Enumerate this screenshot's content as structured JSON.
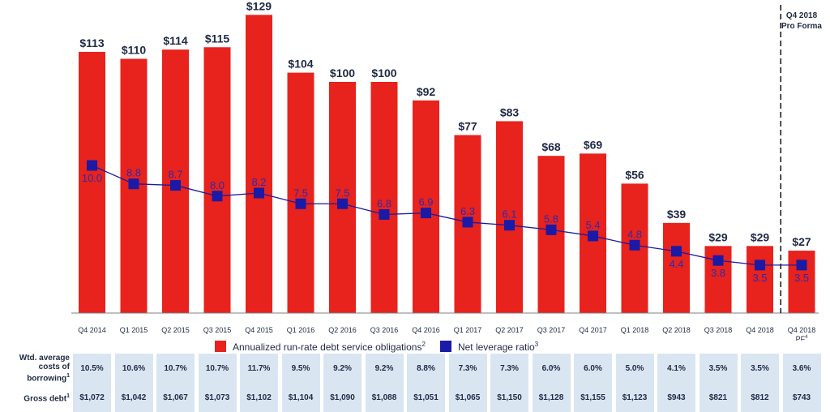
{
  "chart_data": {
    "type": "bar",
    "categories": [
      "Q4 2014",
      "Q1 2015",
      "Q2 2015",
      "Q3 2015",
      "Q4 2015",
      "Q1 2016",
      "Q2 2016",
      "Q3 2016",
      "Q4 2016",
      "Q1 2017",
      "Q2 2017",
      "Q3 2017",
      "Q4 2017",
      "Q1 2018",
      "Q2 2018",
      "Q3 2018",
      "Q4 2018",
      "Q4 2018 PF"
    ],
    "category_superscripts": [
      "",
      "",
      "",
      "",
      "",
      "",
      "",
      "",
      "",
      "",
      "",
      "",
      "",
      "",
      "",
      "",
      "",
      "4"
    ],
    "series": [
      {
        "name": "Annualized run-rate debt service obligations",
        "name_superscript": "2",
        "type": "bar",
        "color": "#e8221c",
        "values": [
          113,
          110,
          114,
          115,
          129,
          104,
          100,
          100,
          92,
          77,
          83,
          68,
          69,
          56,
          39,
          29,
          29,
          27
        ],
        "labels": [
          "$113",
          "$110",
          "$114",
          "$115",
          "$129",
          "$104",
          "$100",
          "$100",
          "$92",
          "$77",
          "$83",
          "$68",
          "$69",
          "$56",
          "$39",
          "$29",
          "$29",
          "$27"
        ]
      },
      {
        "name": "Net leverage ratio",
        "name_superscript": "3",
        "type": "line",
        "color": "#1a1aa6",
        "values": [
          10.0,
          8.8,
          8.7,
          8.0,
          8.2,
          7.5,
          7.5,
          6.8,
          6.9,
          6.3,
          6.1,
          5.8,
          5.4,
          4.8,
          4.4,
          3.8,
          3.5,
          3.5
        ],
        "labels": [
          "10.0",
          "8.8",
          "8.7",
          "8.0",
          "8.2",
          "7.5",
          "7.5",
          "6.8",
          "6.9",
          "6.3",
          "6.1",
          "5.8",
          "5.4",
          "4.8",
          "4.4",
          "3.8",
          "3.5",
          "3.5"
        ],
        "label_position": [
          "below",
          "above",
          "above",
          "above",
          "above",
          "above",
          "above",
          "above",
          "above",
          "above",
          "above",
          "above",
          "above",
          "above",
          "below",
          "below",
          "below",
          "below"
        ]
      }
    ],
    "pro_forma_header": [
      "Q4 2018",
      "Pro Forma"
    ],
    "legend_position": "bottom",
    "grid": false
  },
  "table": {
    "rows": [
      {
        "label_lines": [
          "Wtd. average",
          "costs of",
          "borrowing"
        ],
        "label_superscript": "1",
        "values": [
          "10.5%",
          "10.6%",
          "10.7%",
          "10.7%",
          "11.7%",
          "9.5%",
          "9.2%",
          "9.2%",
          "8.8%",
          "7.3%",
          "7.3%",
          "6.0%",
          "6.0%",
          "5.0%",
          "4.1%",
          "3.5%",
          "3.5%",
          "3.6%"
        ]
      },
      {
        "label_lines": [
          "Gross debt"
        ],
        "label_superscript": "1",
        "values": [
          "$1,072",
          "$1,042",
          "$1,067",
          "$1,073",
          "$1,102",
          "$1,104",
          "$1,090",
          "$1,088",
          "$1,051",
          "$1,065",
          "$1,150",
          "$1,128",
          "$1,155",
          "$1,123",
          "$943",
          "$821",
          "$812",
          "$743"
        ]
      }
    ],
    "cell_color": "#d9e6f2"
  }
}
